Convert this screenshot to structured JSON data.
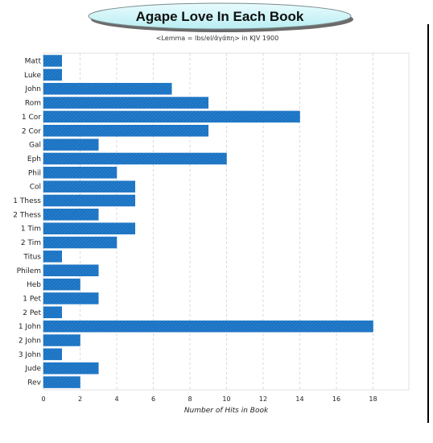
{
  "chart_data": {
    "type": "bar",
    "orientation": "horizontal",
    "title": "Agape Love In Each Book",
    "subtitle": "<Lemma = lbs/el/ἀγάπη> in KJV 1900",
    "xlabel": "Number of Hits in Book",
    "ylabel": "",
    "xlim": [
      0,
      20
    ],
    "xticks": [
      0,
      2,
      4,
      6,
      8,
      10,
      12,
      14,
      16,
      18
    ],
    "grid": true,
    "legend": "none",
    "bar_color": "#1a72c2",
    "categories": [
      "Matt",
      "Luke",
      "John",
      "Rom",
      "1 Cor",
      "2 Cor",
      "Gal",
      "Eph",
      "Phil",
      "Col",
      "1 Thess",
      "2 Thess",
      "1 Tim",
      "2 Tim",
      "Titus",
      "Philem",
      "Heb",
      "1 Pet",
      "2 Pet",
      "1 John",
      "2 John",
      "3 John",
      "Jude",
      "Rev"
    ],
    "values": [
      1,
      1,
      7,
      9,
      14,
      9,
      3,
      10,
      4,
      5,
      5,
      3,
      5,
      4,
      1,
      3,
      2,
      3,
      1,
      18,
      2,
      1,
      3,
      2
    ]
  }
}
